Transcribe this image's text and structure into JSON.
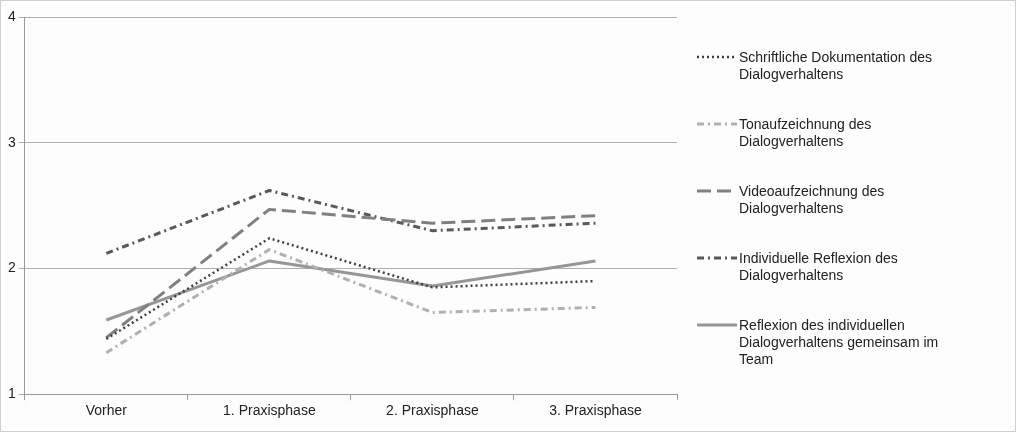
{
  "chart_data": {
    "type": "line",
    "categories": [
      "Vorher",
      "1. Praxisphase",
      "2. Praxisphase",
      "3. Praxisphase"
    ],
    "series": [
      {
        "name": "Schriftliche Dokumentation des Dialogverhaltens",
        "color": "#404040",
        "line_style": "dotted",
        "values": [
          1.44,
          2.24,
          1.85,
          1.9
        ]
      },
      {
        "name": "Tonaufzeichnung des Dialogverhaltens",
        "color": "#b0b0b0",
        "line_style": "dashdot",
        "values": [
          1.33,
          2.15,
          1.65,
          1.69
        ]
      },
      {
        "name": "Videoaufzeichnung des Dialogverhaltens",
        "color": "#808080",
        "line_style": "dashed",
        "values": [
          1.45,
          2.47,
          2.36,
          2.42
        ]
      },
      {
        "name": "Individuelle Reflexion des Dialogverhaltens",
        "color": "#595959",
        "line_style": "dashdot",
        "values": [
          2.12,
          2.62,
          2.3,
          2.36
        ]
      },
      {
        "name": "Reflexion des individuellen Dialogverhaltens gemeinsam im Team",
        "color": "#969696",
        "line_style": "solid",
        "values": [
          1.59,
          2.06,
          1.86,
          2.06
        ]
      }
    ],
    "ylim": [
      1,
      4
    ],
    "yticks": [
      1,
      2,
      3,
      4
    ],
    "grid": "y",
    "legend": "right",
    "marker": "none"
  }
}
